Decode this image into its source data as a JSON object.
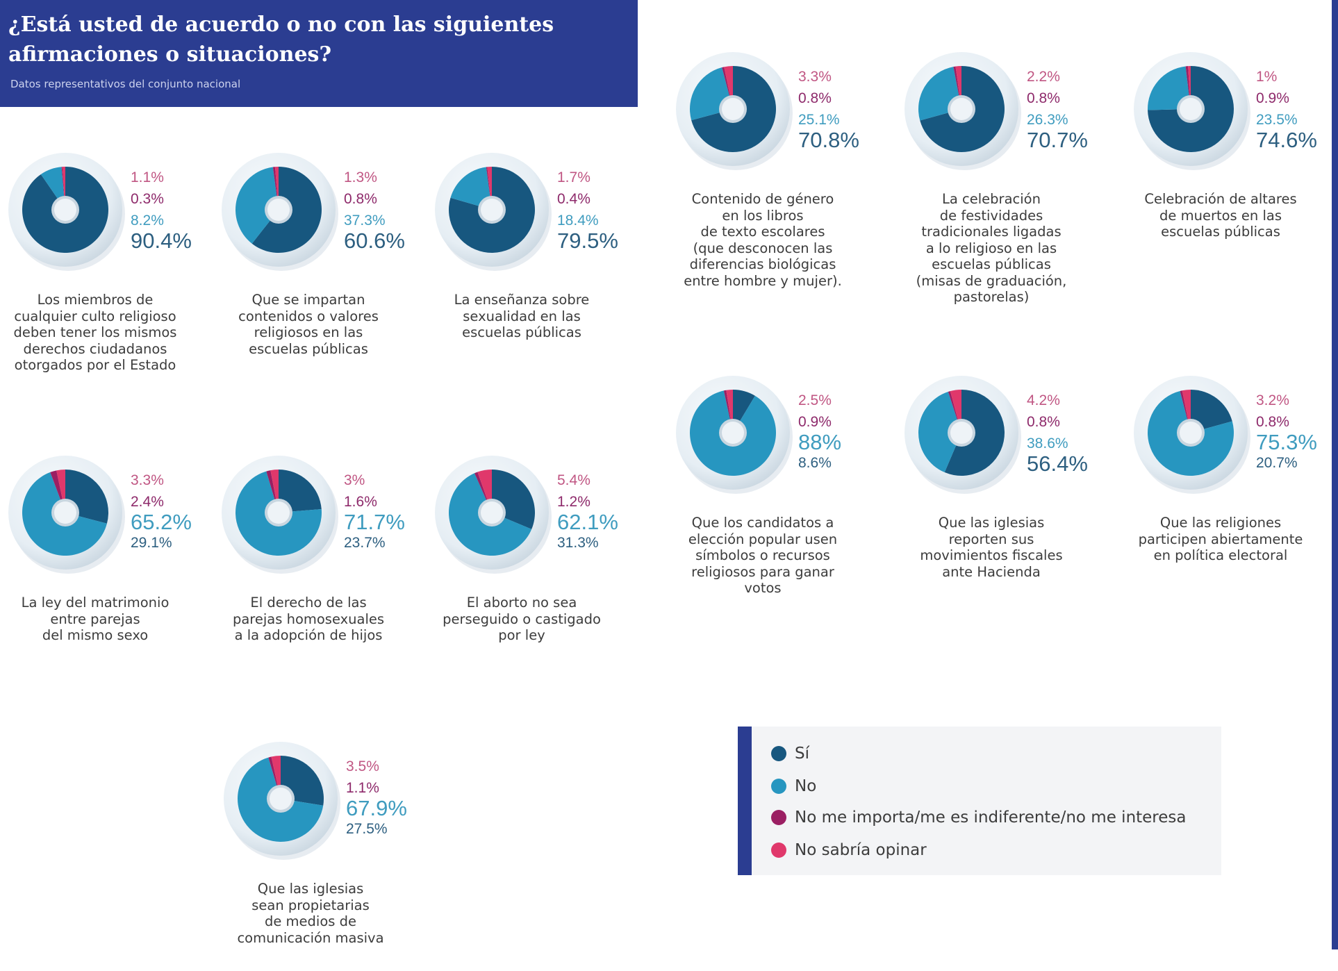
{
  "header": {
    "title": "¿Está usted de acuerdo o no con las siguientes afirmaciones o situaciones?",
    "subtitle": "Datos representativos del conjunto nacional"
  },
  "colors": {
    "si": "#17577f",
    "no": "#2796c0",
    "indiferente": "#9b1f63",
    "no_sabria": "#e0386b",
    "ring": "#dde6ee"
  },
  "legend": {
    "items": [
      {
        "label": "Sí",
        "color": "#17577f"
      },
      {
        "label": "No",
        "color": "#2796c0"
      },
      {
        "label": "No me importa/me es indiferente/no me interesa",
        "color": "#9b1f63"
      },
      {
        "label": "No sabría opinar",
        "color": "#e0386b"
      }
    ]
  },
  "chart_data": [
    {
      "type": "pie",
      "title": "Los miembros de\ncualquier culto religioso\ndeben tener los mismos\nderechos ciudadanos\notorgados por el Estado",
      "categories": [
        "Sí",
        "No",
        "No me importa/me es indiferente/no me interesa",
        "No sabría opinar"
      ],
      "values": [
        90.4,
        8.2,
        0.3,
        1.1
      ],
      "labels": [
        "1.1%",
        "0.3%",
        "8.2%",
        "90.4%"
      ],
      "order": [
        3,
        2,
        1,
        0
      ]
    },
    {
      "type": "pie",
      "title": "Que se impartan\ncontenidos o valores\nreligiosos en las\nescuelas públicas",
      "categories": [
        "Sí",
        "No",
        "No me importa/me es indiferente/no me interesa",
        "No sabría opinar"
      ],
      "values": [
        60.6,
        37.3,
        0.8,
        1.3
      ],
      "labels": [
        "1.3%",
        "0.8%",
        "37.3%",
        "60.6%"
      ],
      "order": [
        3,
        2,
        1,
        0
      ]
    },
    {
      "type": "pie",
      "title": "La enseñanza sobre\nsexualidad en las\nescuelas públicas",
      "categories": [
        "Sí",
        "No",
        "No me importa/me es indiferente/no me interesa",
        "No sabría opinar"
      ],
      "values": [
        79.5,
        18.4,
        0.4,
        1.7
      ],
      "labels": [
        "1.7%",
        "0.4%",
        "18.4%",
        "79.5%"
      ],
      "order": [
        3,
        2,
        1,
        0
      ]
    },
    {
      "type": "pie",
      "title": "Contenido de género\nen los libros\nde texto escolares\n(que desconocen las\ndiferencias biológicas\nentre hombre y mujer).",
      "categories": [
        "Sí",
        "No",
        "No me importa/me es indiferente/no me interesa",
        "No sabría opinar"
      ],
      "values": [
        70.8,
        25.1,
        0.8,
        3.3
      ],
      "labels": [
        "3.3%",
        "0.8%",
        "25.1%",
        "70.8%"
      ],
      "order": [
        3,
        2,
        1,
        0
      ]
    },
    {
      "type": "pie",
      "title": "La celebración\nde festividades\ntradicionales ligadas\na lo religioso en las\nescuelas públicas\n(misas de graduación,\npastorelas)",
      "categories": [
        "Sí",
        "No",
        "No me importa/me es indiferente/no me interesa",
        "No sabría opinar"
      ],
      "values": [
        70.7,
        26.3,
        0.8,
        2.2
      ],
      "labels": [
        "2.2%",
        "0.8%",
        "26.3%",
        "70.7%"
      ],
      "order": [
        3,
        2,
        1,
        0
      ]
    },
    {
      "type": "pie",
      "title": "Celebración de altares\nde muertos en las\nescuelas públicas",
      "categories": [
        "Sí",
        "No",
        "No me importa/me es indiferente/no me interesa",
        "No sabría opinar"
      ],
      "values": [
        74.6,
        23.5,
        0.9,
        1
      ],
      "labels": [
        "1%",
        "0.9%",
        "23.5%",
        "74.6%"
      ],
      "order": [
        3,
        2,
        1,
        0
      ]
    },
    {
      "type": "pie",
      "title": "La ley del matrimonio\nentre parejas\ndel mismo sexo",
      "categories": [
        "Sí",
        "No",
        "No me importa/me es indiferente/no me interesa",
        "No sabría opinar"
      ],
      "values": [
        29.1,
        65.2,
        2.4,
        3.3
      ],
      "labels": [
        "3.3%",
        "2.4%",
        "65.2%",
        "29.1%"
      ],
      "order": [
        3,
        2,
        1,
        0
      ]
    },
    {
      "type": "pie",
      "title": "El derecho de las\nparejas homosexuales\na la adopción de hijos",
      "categories": [
        "Sí",
        "No",
        "No me importa/me es indiferente/no me interesa",
        "No sabría opinar"
      ],
      "values": [
        23.7,
        71.7,
        1.6,
        3
      ],
      "labels": [
        "3%",
        "1.6%",
        "71.7%",
        "23.7%"
      ],
      "order": [
        3,
        2,
        1,
        0
      ]
    },
    {
      "type": "pie",
      "title": "El aborto no sea\nperseguido o castigado\npor ley",
      "categories": [
        "Sí",
        "No",
        "No me importa/me es indiferente/no me interesa",
        "No sabría opinar"
      ],
      "values": [
        31.3,
        62.1,
        1.2,
        5.4
      ],
      "labels": [
        "5.4%",
        "1.2%",
        "62.1%",
        "31.3%"
      ],
      "order": [
        3,
        2,
        1,
        0
      ]
    },
    {
      "type": "pie",
      "title": "Que los candidatos a\nelección popular usen\nsímbolos o recursos\nreligiosos para ganar\nvotos",
      "categories": [
        "Sí",
        "No",
        "No me importa/me es indiferente/no me interesa",
        "No sabría opinar"
      ],
      "values": [
        8.6,
        88,
        0.9,
        2.5
      ],
      "labels": [
        "2.5%",
        "0.9%",
        "88%",
        "8.6%"
      ],
      "order": [
        3,
        2,
        1,
        0
      ]
    },
    {
      "type": "pie",
      "title": "Que las iglesias\nreporten sus\nmovimientos fiscales\nante Hacienda",
      "categories": [
        "Sí",
        "No",
        "No me importa/me es indiferente/no me interesa",
        "No sabría opinar"
      ],
      "values": [
        56.4,
        38.6,
        0.8,
        4.2
      ],
      "labels": [
        "4.2%",
        "0.8%",
        "38.6%",
        "56.4%"
      ],
      "order": [
        3,
        2,
        1,
        0
      ]
    },
    {
      "type": "pie",
      "title": "Que las religiones\nparticipen abiertamente\nen política electoral",
      "categories": [
        "Sí",
        "No",
        "No me importa/me es indiferente/no me interesa",
        "No sabría opinar"
      ],
      "values": [
        20.7,
        75.3,
        0.8,
        3.2
      ],
      "labels": [
        "3.2%",
        "0.8%",
        "75.3%",
        "20.7%"
      ],
      "order": [
        3,
        2,
        1,
        0
      ]
    },
    {
      "type": "pie",
      "title": "Que las iglesias\nsean propietarias\nde medios de\ncomunicación masiva",
      "categories": [
        "Sí",
        "No",
        "No me importa/me es indiferente/no me interesa",
        "No sabría opinar"
      ],
      "values": [
        27.5,
        67.9,
        1.1,
        3.5
      ],
      "labels": [
        "3.5%",
        "1.1%",
        "67.9%",
        "27.5%"
      ],
      "order": [
        3,
        2,
        1,
        0
      ]
    }
  ]
}
